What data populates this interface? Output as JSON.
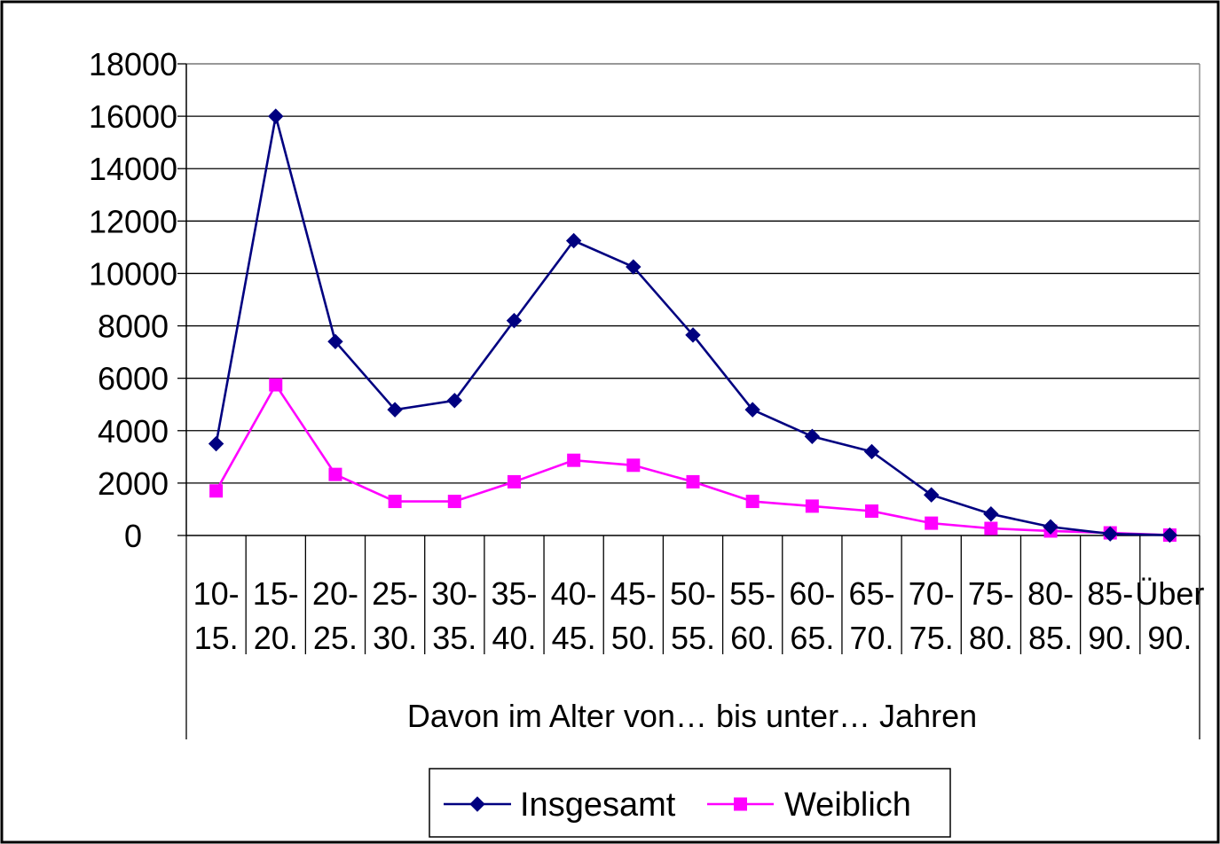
{
  "chart_data": {
    "type": "line",
    "categories": [
      [
        "10-",
        "15."
      ],
      [
        "15-",
        "20."
      ],
      [
        "20-",
        "25."
      ],
      [
        "25-",
        "30."
      ],
      [
        "30-",
        "35."
      ],
      [
        "35-",
        "40."
      ],
      [
        "40-",
        "45."
      ],
      [
        "45-",
        "50."
      ],
      [
        "50-",
        "55."
      ],
      [
        "55-",
        "60."
      ],
      [
        "60-",
        "65."
      ],
      [
        "65-",
        "70."
      ],
      [
        "70-",
        "75."
      ],
      [
        "75-",
        "80."
      ],
      [
        "80-",
        "85."
      ],
      [
        "85-",
        "90."
      ],
      [
        "Über",
        "90."
      ]
    ],
    "series": [
      {
        "name": "Insgesamt",
        "color": "#000080",
        "marker": "diamond",
        "values": [
          3500,
          16000,
          7400,
          4800,
          5150,
          8200,
          11250,
          10250,
          7650,
          4800,
          3780,
          3200,
          1550,
          820,
          330,
          60,
          15
        ]
      },
      {
        "name": "Weiblich",
        "color": "#ff00ff",
        "marker": "square",
        "values": [
          1700,
          5750,
          2330,
          1300,
          1300,
          2050,
          2870,
          2680,
          2050,
          1300,
          1120,
          930,
          470,
          270,
          170,
          100,
          15
        ]
      }
    ],
    "xlabel": "Davon im Alter von… bis unter… Jahren",
    "ylim": [
      0,
      18000
    ],
    "yticks": [
      0,
      2000,
      4000,
      6000,
      8000,
      10000,
      12000,
      14000,
      16000,
      18000
    ],
    "grid": true,
    "legend": "bottom"
  }
}
